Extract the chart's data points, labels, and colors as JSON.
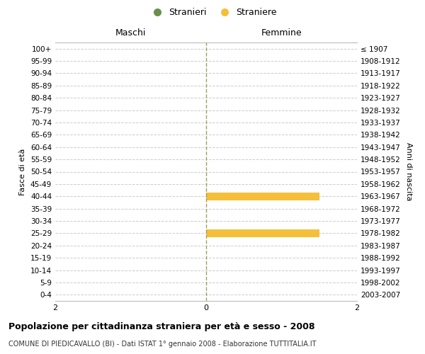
{
  "age_groups": [
    "0-4",
    "5-9",
    "10-14",
    "15-19",
    "20-24",
    "25-29",
    "30-34",
    "35-39",
    "40-44",
    "45-49",
    "50-54",
    "55-59",
    "60-64",
    "65-69",
    "70-74",
    "75-79",
    "80-84",
    "85-89",
    "90-94",
    "95-99",
    "100+"
  ],
  "birth_years": [
    "2003-2007",
    "1998-2002",
    "1993-1997",
    "1988-1992",
    "1983-1987",
    "1978-1982",
    "1973-1977",
    "1968-1972",
    "1963-1967",
    "1958-1962",
    "1953-1957",
    "1948-1952",
    "1943-1947",
    "1938-1942",
    "1933-1937",
    "1928-1932",
    "1923-1927",
    "1918-1922",
    "1913-1917",
    "1908-1912",
    "≤ 1907"
  ],
  "males": [
    0,
    0,
    0,
    0,
    0,
    0,
    0,
    0,
    0,
    0,
    0,
    0,
    0,
    0,
    0,
    0,
    0,
    0,
    0,
    0,
    0
  ],
  "females": [
    0,
    0,
    0,
    0,
    0,
    1.5,
    0,
    0,
    1.5,
    0,
    0,
    0,
    0,
    0,
    0,
    0,
    0,
    0,
    0,
    0,
    0
  ],
  "male_color": "#6a8f4a",
  "female_color": "#f5bf3a",
  "background_color": "#ffffff",
  "grid_color": "#cccccc",
  "center_line_color": "#a0a060",
  "xlim": [
    -2,
    2
  ],
  "title_main": "Popolazione per cittadinanza straniera per età e sesso - 2008",
  "title_sub": "COMUNE DI PIEDICAVALLO (BI) - Dati ISTAT 1° gennaio 2008 - Elaborazione TUTTITALIA.IT",
  "label_maschi": "Maschi",
  "label_femmine": "Femmine",
  "label_stranieri": "Stranieri",
  "label_straniere": "Straniere",
  "ylabel_left": "Fasce di età",
  "ylabel_right": "Anni di nascita"
}
